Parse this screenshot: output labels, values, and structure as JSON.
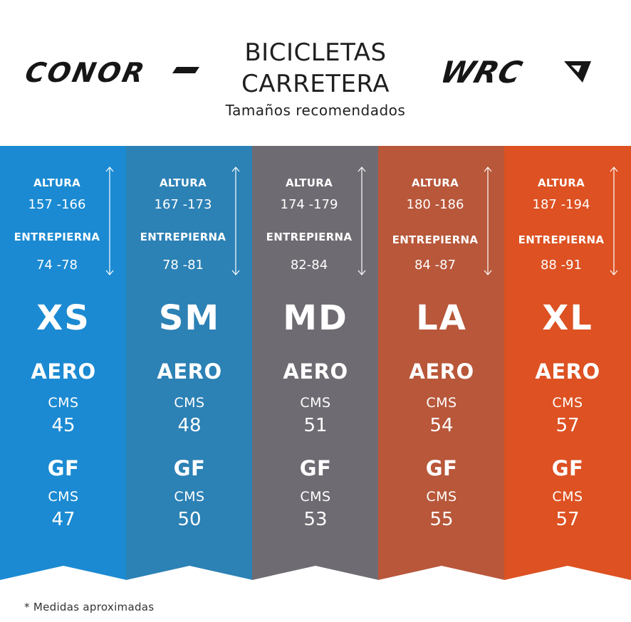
{
  "header": {
    "title_line1": "BICICLETAS",
    "title_line2": "CARRETERA",
    "subtitle": "Tamaños recomendados",
    "logo_left": "CONOR",
    "logo_right": "WRC"
  },
  "labels": {
    "height": "ALTURA",
    "inseam": "ENTREPIERNA",
    "aero": "AERO",
    "gf": "GF",
    "cms": "CMS"
  },
  "sizes": [
    {
      "size": "XS",
      "height": "157 -166",
      "inseam": "74 -78",
      "aero_cms": "45",
      "gf_cms": "47",
      "color": "#1b8ad2"
    },
    {
      "size": "SM",
      "height": "167 -173",
      "inseam": "78 -81",
      "aero_cms": "48",
      "gf_cms": "50",
      "color": "#2c81b5"
    },
    {
      "size": "MD",
      "height": "174 -179",
      "inseam": "82-84",
      "aero_cms": "51",
      "gf_cms": "53",
      "color": "#6f6b72"
    },
    {
      "size": "LA",
      "height": "180 -186",
      "inseam": "84 -87",
      "aero_cms": "54",
      "gf_cms": "55",
      "color": "#b8573a"
    },
    {
      "size": "XL",
      "height": "187 -194",
      "inseam": "88 -91",
      "aero_cms": "57",
      "gf_cms": "57",
      "color": "#dd5122"
    }
  ],
  "footnote": "* Medidas aproximadas"
}
